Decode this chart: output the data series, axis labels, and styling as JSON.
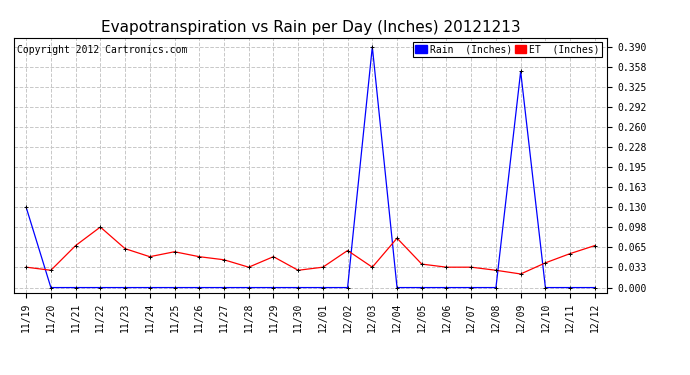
{
  "title": "Evapotranspiration vs Rain per Day (Inches) 20121213",
  "copyright": "Copyright 2012 Cartronics.com",
  "labels": [
    "11/19",
    "11/20",
    "11/21",
    "11/22",
    "11/23",
    "11/24",
    "11/25",
    "11/26",
    "11/27",
    "11/28",
    "11/29",
    "11/30",
    "12/01",
    "12/02",
    "12/03",
    "12/04",
    "12/05",
    "12/06",
    "12/07",
    "12/08",
    "12/09",
    "12/10",
    "12/11",
    "12/12"
  ],
  "rain": [
    0.13,
    0.0,
    0.0,
    0.0,
    0.0,
    0.0,
    0.0,
    0.0,
    0.0,
    0.0,
    0.0,
    0.0,
    0.0,
    0.0,
    0.39,
    0.0,
    0.0,
    0.0,
    0.0,
    0.0,
    0.35,
    0.0,
    0.0,
    0.0
  ],
  "et": [
    0.033,
    0.028,
    0.068,
    0.098,
    0.063,
    0.05,
    0.058,
    0.05,
    0.045,
    0.033,
    0.05,
    0.028,
    0.033,
    0.06,
    0.033,
    0.08,
    0.038,
    0.033,
    0.033,
    0.028,
    0.022,
    0.04,
    0.055,
    0.068
  ],
  "rain_color": "#0000ff",
  "et_color": "#ff0000",
  "background_color": "#ffffff",
  "grid_color": "#c8c8c8",
  "yticks": [
    0.0,
    0.033,
    0.065,
    0.098,
    0.13,
    0.163,
    0.195,
    0.228,
    0.26,
    0.292,
    0.325,
    0.358,
    0.39
  ],
  "ylim": [
    -0.008,
    0.405
  ],
  "title_fontsize": 11,
  "copyright_fontsize": 7,
  "tick_fontsize": 7,
  "legend_rain_label": "Rain  (Inches)",
  "legend_et_label": "ET  (Inches)"
}
